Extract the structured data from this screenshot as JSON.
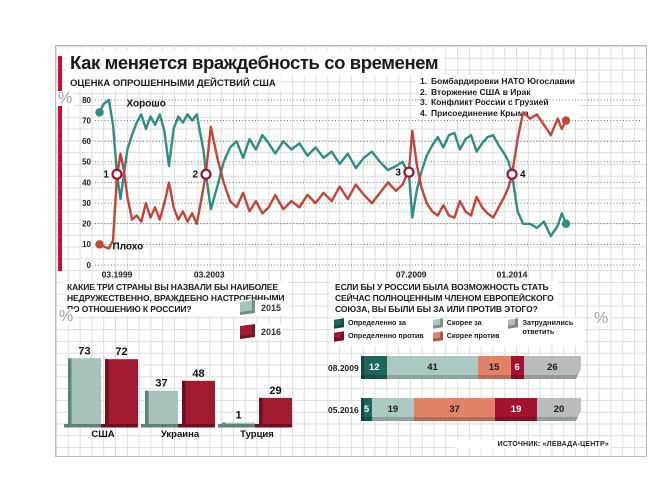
{
  "title": "Как меняется враждебность со временем",
  "source": "ИСТОЧНИК: «ЛЕВАДА-ЦЕНТР»",
  "colors": {
    "accent_red": "#cf0e2c",
    "good_line": "#2f8e80",
    "bad_line": "#c2453a",
    "marker_ring": "#9e1428",
    "text": "#1a1a1a"
  },
  "events": [
    {
      "n": "1.",
      "label": "Бомбардировки НАТО Югославии"
    },
    {
      "n": "2.",
      "label": "Вторжение США в Ирак"
    },
    {
      "n": "3.",
      "label": "Конфликт России с Грузией"
    },
    {
      "n": "4.",
      "label": "Присоединение Крыма"
    }
  ],
  "chart_data": [
    {
      "type": "line",
      "title": "ОЦЕНКА ОПРОШЕННЫМИ ДЕЙСТВИЙ США",
      "unit": "%",
      "ylim": [
        0,
        80
      ],
      "yticks": [
        0,
        10,
        20,
        30,
        40,
        50,
        60,
        70,
        80
      ],
      "xticks": [
        {
          "year": 1999.25,
          "label": "03.1999"
        },
        {
          "year": 2003.2,
          "label": "03.2003"
        },
        {
          "year": 2009.5,
          "label": "07.2009"
        },
        {
          "year": 2014.05,
          "label": "01.2014"
        }
      ],
      "x_anchors": [
        [
          1998.6,
          0
        ],
        [
          1999.25,
          0.0375
        ],
        [
          2003.1,
          0.2283
        ],
        [
          2009.4,
          0.6634
        ],
        [
          2014.05,
          0.8843
        ],
        [
          2016.0,
          1
        ]
      ],
      "series": [
        {
          "name": "Хорошо",
          "color": "#2f8e80",
          "points": [
            [
              1998.6,
              74
            ],
            [
              1998.75,
              78
            ],
            [
              1998.95,
              80
            ],
            [
              1999.1,
              68
            ],
            [
              1999.25,
              44
            ],
            [
              1999.4,
              32
            ],
            [
              1999.55,
              44
            ],
            [
              1999.7,
              56
            ],
            [
              1999.9,
              63
            ],
            [
              2000.1,
              69
            ],
            [
              2000.3,
              73
            ],
            [
              2000.5,
              66
            ],
            [
              2000.7,
              72
            ],
            [
              2000.9,
              68
            ],
            [
              2001.1,
              73
            ],
            [
              2001.3,
              65
            ],
            [
              2001.5,
              48
            ],
            [
              2001.7,
              66
            ],
            [
              2001.9,
              72
            ],
            [
              2002.1,
              69
            ],
            [
              2002.3,
              73
            ],
            [
              2002.5,
              70
            ],
            [
              2002.7,
              73
            ],
            [
              2002.85,
              64
            ],
            [
              2003.0,
              55
            ],
            [
              2003.1,
              44
            ],
            [
              2003.25,
              27
            ],
            [
              2003.45,
              38
            ],
            [
              2003.65,
              50
            ],
            [
              2003.85,
              57
            ],
            [
              2004.05,
              60
            ],
            [
              2004.25,
              52
            ],
            [
              2004.45,
              61
            ],
            [
              2004.65,
              56
            ],
            [
              2004.85,
              63
            ],
            [
              2005.05,
              59
            ],
            [
              2005.25,
              54
            ],
            [
              2005.5,
              60
            ],
            [
              2005.75,
              56
            ],
            [
              2006.0,
              59
            ],
            [
              2006.25,
              53
            ],
            [
              2006.5,
              57
            ],
            [
              2006.75,
              52
            ],
            [
              2007.0,
              55
            ],
            [
              2007.25,
              49
            ],
            [
              2007.5,
              54
            ],
            [
              2007.75,
              47
            ],
            [
              2008.0,
              52
            ],
            [
              2008.25,
              55
            ],
            [
              2008.5,
              50
            ],
            [
              2008.75,
              46
            ],
            [
              2009.0,
              48
            ],
            [
              2009.2,
              50
            ],
            [
              2009.4,
              44
            ],
            [
              2009.55,
              23
            ],
            [
              2009.75,
              36
            ],
            [
              2009.95,
              45
            ],
            [
              2010.2,
              53
            ],
            [
              2010.45,
              58
            ],
            [
              2010.7,
              62
            ],
            [
              2010.95,
              57
            ],
            [
              2011.2,
              63
            ],
            [
              2011.45,
              64
            ],
            [
              2011.7,
              56
            ],
            [
              2011.95,
              61
            ],
            [
              2012.2,
              63
            ],
            [
              2012.45,
              55
            ],
            [
              2012.7,
              59
            ],
            [
              2012.95,
              62
            ],
            [
              2013.2,
              63
            ],
            [
              2013.45,
              58
            ],
            [
              2013.7,
              54
            ],
            [
              2013.9,
              50
            ],
            [
              2014.05,
              44
            ],
            [
              2014.25,
              26
            ],
            [
              2014.45,
              20
            ],
            [
              2014.7,
              20
            ],
            [
              2014.95,
              18
            ],
            [
              2015.2,
              21
            ],
            [
              2015.45,
              14
            ],
            [
              2015.7,
              19
            ],
            [
              2015.85,
              25
            ],
            [
              2016.0,
              20
            ]
          ]
        },
        {
          "name": "Плохо",
          "color": "#c2453a",
          "points": [
            [
              1998.6,
              10
            ],
            [
              1998.75,
              9
            ],
            [
              1998.95,
              8
            ],
            [
              1999.1,
              12
            ],
            [
              1999.25,
              43
            ],
            [
              1999.4,
              54
            ],
            [
              1999.55,
              46
            ],
            [
              1999.7,
              33
            ],
            [
              1999.9,
              22
            ],
            [
              2000.1,
              24
            ],
            [
              2000.3,
              21
            ],
            [
              2000.5,
              30
            ],
            [
              2000.7,
              23
            ],
            [
              2000.9,
              28
            ],
            [
              2001.1,
              22
            ],
            [
              2001.3,
              30
            ],
            [
              2001.5,
              40
            ],
            [
              2001.7,
              28
            ],
            [
              2001.9,
              22
            ],
            [
              2002.1,
              26
            ],
            [
              2002.3,
              21
            ],
            [
              2002.5,
              25
            ],
            [
              2002.7,
              20
            ],
            [
              2002.85,
              29
            ],
            [
              2003.0,
              38
            ],
            [
              2003.1,
              45
            ],
            [
              2003.25,
              67
            ],
            [
              2003.45,
              52
            ],
            [
              2003.65,
              40
            ],
            [
              2003.85,
              31
            ],
            [
              2004.05,
              28
            ],
            [
              2004.25,
              35
            ],
            [
              2004.45,
              26
            ],
            [
              2004.65,
              31
            ],
            [
              2004.85,
              25
            ],
            [
              2005.05,
              28
            ],
            [
              2005.25,
              34
            ],
            [
              2005.5,
              27
            ],
            [
              2005.75,
              31
            ],
            [
              2006.0,
              28
            ],
            [
              2006.25,
              34
            ],
            [
              2006.5,
              30
            ],
            [
              2006.75,
              35
            ],
            [
              2007.0,
              31
            ],
            [
              2007.25,
              38
            ],
            [
              2007.5,
              32
            ],
            [
              2007.75,
              39
            ],
            [
              2008.0,
              34
            ],
            [
              2008.25,
              30
            ],
            [
              2008.5,
              35
            ],
            [
              2008.75,
              40
            ],
            [
              2009.0,
              36
            ],
            [
              2009.2,
              39
            ],
            [
              2009.4,
              46
            ],
            [
              2009.55,
              65
            ],
            [
              2009.75,
              49
            ],
            [
              2009.95,
              38
            ],
            [
              2010.2,
              30
            ],
            [
              2010.45,
              26
            ],
            [
              2010.7,
              24
            ],
            [
              2010.95,
              29
            ],
            [
              2011.2,
              24
            ],
            [
              2011.45,
              23
            ],
            [
              2011.7,
              31
            ],
            [
              2011.95,
              26
            ],
            [
              2012.2,
              24
            ],
            [
              2012.45,
              33
            ],
            [
              2012.7,
              28
            ],
            [
              2012.95,
              25
            ],
            [
              2013.2,
              23
            ],
            [
              2013.45,
              28
            ],
            [
              2013.7,
              33
            ],
            [
              2013.9,
              38
            ],
            [
              2014.05,
              44
            ],
            [
              2014.25,
              61
            ],
            [
              2014.45,
              74
            ],
            [
              2014.7,
              71
            ],
            [
              2014.95,
              73
            ],
            [
              2015.2,
              68
            ],
            [
              2015.45,
              63
            ],
            [
              2015.7,
              71
            ],
            [
              2015.85,
              66
            ],
            [
              2016.0,
              70
            ]
          ]
        }
      ],
      "markers": [
        {
          "n": "1",
          "year": 1999.25,
          "value": 44,
          "side": "left"
        },
        {
          "n": "2",
          "year": 2003.1,
          "value": 44,
          "side": "left"
        },
        {
          "n": "3",
          "year": 2009.4,
          "value": 45,
          "side": "left"
        },
        {
          "n": "4",
          "year": 2014.05,
          "value": 44,
          "side": "right"
        }
      ]
    },
    {
      "type": "bar",
      "title": "КАКИЕ ТРИ СТРАНЫ ВЫ НАЗВАЛИ БЫ НАИБОЛЕЕ\nНЕДРУЖЕСТВЕННО, ВРАЖДЕБНО НАСТРОЕННЫМИ\nПО ОТНОШЕНИЮ К РОССИИ?",
      "unit": "%",
      "categories": [
        "США",
        "Украина",
        "Турция"
      ],
      "series": [
        {
          "name": "2015",
          "color": "#a7c2ba",
          "edge": "#5f837a",
          "values": [
            73,
            37,
            1
          ]
        },
        {
          "name": "2016",
          "color": "#a01a30",
          "edge": "#6d0f20",
          "values": [
            72,
            48,
            29
          ]
        }
      ]
    },
    {
      "type": "stacked_bar",
      "title": "ЕСЛИ БЫ У РОССИИ БЫЛА ВОЗМОЖНОСТЬ СТАТЬ\nСЕЙЧАС ПОЛНОЦЕННЫМ ЧЛЕНОМ ЕВРОПЕЙСКОГО\nСОЮЗА, ВЫ БЫЛИ БЫ ЗА ИЛИ ПРОТИВ ЭТОГО?",
      "unit": "%",
      "legend": [
        "Определенно за",
        "Определенно против",
        "Скорее за",
        "Скорее против",
        "Затруднились\nответить"
      ],
      "segment_colors": [
        "#1e665c",
        "#abc9c1",
        "#e28368",
        "#a31230",
        "#b8bcba"
      ],
      "segment_text_colors": [
        "#ffffff",
        "#1a1a1a",
        "#1a1a1a",
        "#ffffff",
        "#1a1a1a"
      ],
      "rows": [
        {
          "label": "08.2009",
          "values": [
            12,
            41,
            15,
            6,
            26
          ]
        },
        {
          "label": "05.2016",
          "values": [
            5,
            19,
            37,
            19,
            20
          ]
        }
      ]
    }
  ]
}
